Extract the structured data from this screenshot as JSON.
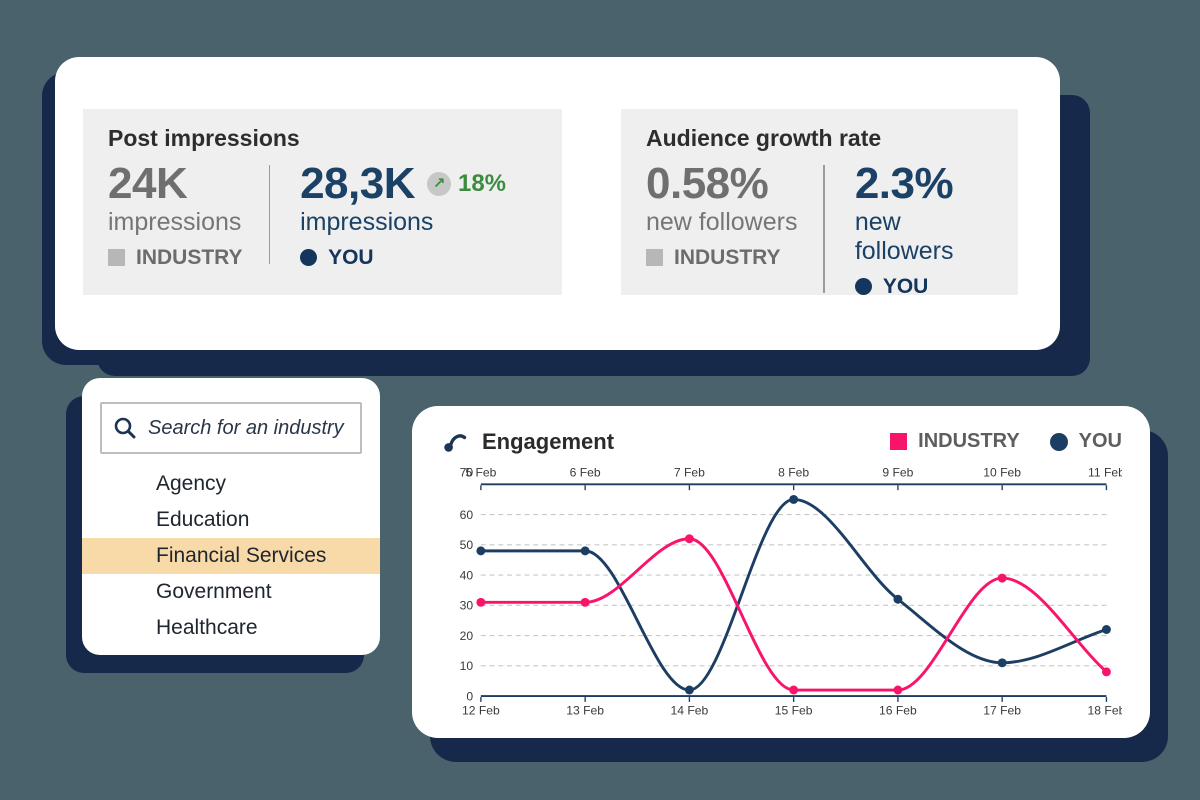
{
  "colors": {
    "background": "#4A626C",
    "card_shadow": "#16294A",
    "panel_gray": "#EFEFEF",
    "industry_pink": "#F9146B",
    "you_navy": "#1D3E63",
    "positive_green": "#3C8C40",
    "selected_highlight": "#F8D9A8"
  },
  "stats_card": {
    "post_impressions": {
      "title": "Post impressions",
      "industry": {
        "value": "24K",
        "unit": "impressions",
        "label": "INDUSTRY"
      },
      "you": {
        "value": "28,3K",
        "unit": "impressions",
        "label": "YOU",
        "change": "18%",
        "change_arrow": "↗"
      }
    },
    "audience_growth": {
      "title": "Audience growth rate",
      "industry": {
        "value": "0.58%",
        "unit": "new followers",
        "label": "INDUSTRY"
      },
      "you": {
        "value": "2.3%",
        "unit": "new followers",
        "label": "YOU"
      }
    }
  },
  "industry_selector": {
    "search_placeholder": "Search for an industry",
    "selected": "Financial Services",
    "options": [
      "Agency",
      "Education",
      "Financial Services",
      "Government",
      "Healthcare"
    ]
  },
  "chart_card": {
    "title": "Engagement",
    "legend": [
      {
        "label": "INDUSTRY",
        "marker": "square",
        "color": "#F9146B"
      },
      {
        "label": "YOU",
        "marker": "circle",
        "color": "#1D3E63"
      }
    ]
  },
  "chart_data": {
    "type": "line",
    "title": "Engagement",
    "x_top_labels": [
      "5 Feb",
      "6 Feb",
      "7 Feb",
      "8 Feb",
      "9 Feb",
      "10 Feb",
      "11 Feb"
    ],
    "x_bottom_labels": [
      "12 Feb",
      "13 Feb",
      "14 Feb",
      "15 Feb",
      "16 Feb",
      "17 Feb",
      "18 Feb"
    ],
    "y_ticks": [
      0,
      10,
      20,
      30,
      40,
      50,
      60,
      70
    ],
    "ylim": [
      0,
      70
    ],
    "grid": "horizontal-dashed",
    "legend_position": "top-right",
    "series": [
      {
        "name": "INDUSTRY",
        "color": "#F9146B",
        "values": [
          31,
          31,
          52,
          2,
          2,
          39,
          8
        ]
      },
      {
        "name": "YOU",
        "color": "#1D3E63",
        "values": [
          48,
          48,
          2,
          65,
          32,
          11,
          22
        ]
      }
    ]
  }
}
